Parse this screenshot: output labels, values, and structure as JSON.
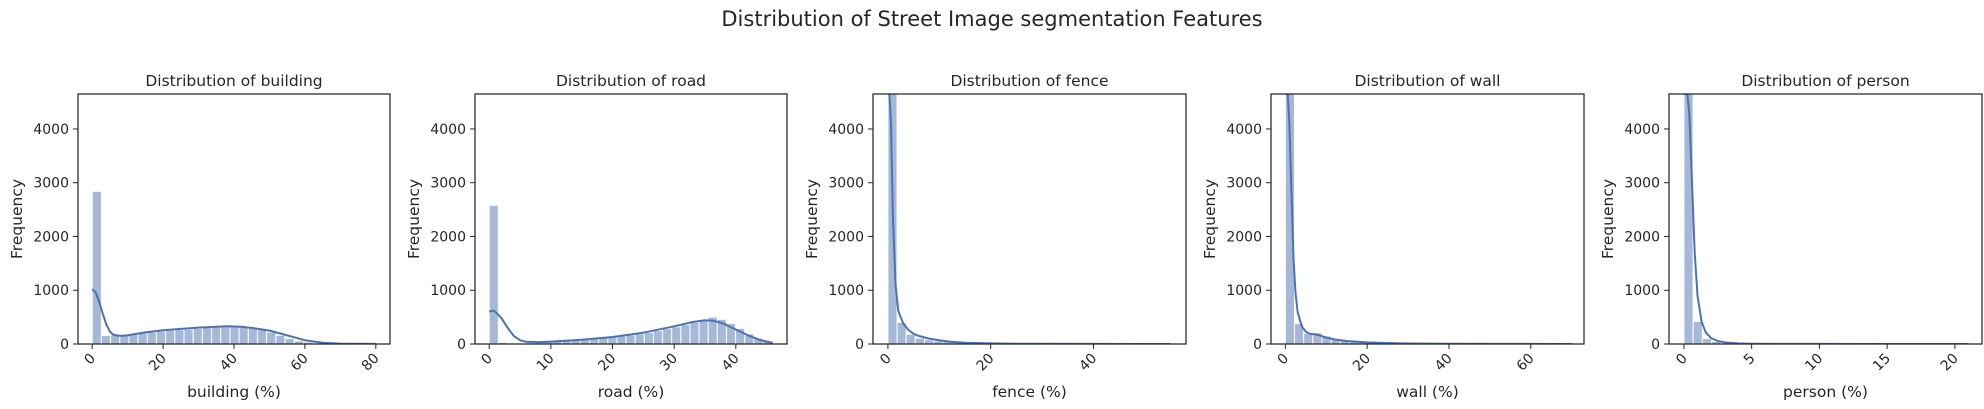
{
  "figure": {
    "suptitle": "Distribution of Street Image segmentation Features"
  },
  "colors": {
    "bar_fill": "#4c72b0",
    "kde_line": "#4c72b0",
    "axes": "#262626",
    "text": "#262626",
    "background": "#ffffff"
  },
  "chart_data": [
    {
      "type": "histogram",
      "title": "Distribution of building",
      "xlabel": "building (%)",
      "ylabel": "Frequency",
      "xlim": [
        -4,
        84
      ],
      "ylim": [
        0,
        4650
      ],
      "xticks": [
        0,
        20,
        40,
        60,
        80
      ],
      "yticks": [
        0,
        1000,
        2000,
        3000,
        4000
      ],
      "xticklabels": [
        "0",
        "20",
        "40",
        "60",
        "80"
      ],
      "yticklabels": [
        "0",
        "1000",
        "2000",
        "3000",
        "4000"
      ],
      "bin_edges": [
        0,
        2.59,
        5.18,
        7.77,
        10.36,
        12.95,
        15.54,
        18.13,
        20.72,
        23.31,
        25.9,
        28.49,
        31.08,
        33.67,
        36.26,
        38.85,
        41.44,
        44.03,
        46.62,
        49.21,
        51.8,
        54.39,
        56.98,
        59.57,
        62.16,
        64.75,
        67.34,
        69.93,
        72.52,
        75.11,
        77.7,
        80.29
      ],
      "counts": [
        2840,
        160,
        165,
        170,
        185,
        205,
        220,
        240,
        255,
        265,
        275,
        290,
        305,
        320,
        320,
        330,
        320,
        300,
        270,
        220,
        160,
        100,
        60,
        35,
        20,
        12,
        8,
        5,
        3,
        2,
        1
      ],
      "kde": {
        "x": [
          0,
          1,
          2,
          3,
          4,
          5,
          6,
          8,
          10,
          12,
          15,
          20,
          25,
          30,
          35,
          38,
          42,
          45,
          50,
          55,
          60,
          65,
          70,
          80
        ],
        "y": [
          1020,
          960,
          780,
          560,
          360,
          230,
          170,
          150,
          160,
          185,
          215,
          255,
          280,
          305,
          320,
          330,
          320,
          300,
          250,
          160,
          70,
          25,
          8,
          1
        ]
      }
    },
    {
      "type": "histogram",
      "title": "Distribution of road",
      "xlabel": "road (%)",
      "ylabel": "Frequency",
      "xlim": [
        -2.3,
        48.3
      ],
      "ylim": [
        0,
        4650
      ],
      "xticks": [
        0,
        10,
        20,
        30,
        40
      ],
      "yticks": [
        0,
        1000,
        2000,
        3000,
        4000
      ],
      "xticklabels": [
        "0",
        "10",
        "20",
        "30",
        "40"
      ],
      "yticklabels": [
        "0",
        "1000",
        "2000",
        "3000",
        "4000"
      ],
      "bin_edges": [
        0,
        1.48,
        2.96,
        4.44,
        5.92,
        7.4,
        8.88,
        10.36,
        11.84,
        13.32,
        14.8,
        16.28,
        17.76,
        19.24,
        20.72,
        22.2,
        23.68,
        25.16,
        26.64,
        28.12,
        29.6,
        31.08,
        32.56,
        34.04,
        35.52,
        37.0,
        38.48,
        39.96,
        41.44,
        42.92,
        44.4,
        45.88
      ],
      "counts": [
        2580,
        30,
        20,
        20,
        25,
        30,
        40,
        50,
        60,
        70,
        85,
        100,
        115,
        130,
        150,
        165,
        190,
        215,
        250,
        285,
        320,
        360,
        400,
        440,
        500,
        460,
        380,
        290,
        190,
        110,
        55
      ],
      "kde": {
        "x": [
          0,
          0.5,
          1,
          2,
          3,
          4,
          5,
          6,
          8,
          10,
          15,
          20,
          25,
          30,
          33,
          35,
          36.5,
          38,
          40,
          42,
          44,
          46
        ],
        "y": [
          600,
          620,
          600,
          480,
          300,
          150,
          70,
          40,
          35,
          45,
          80,
          130,
          210,
          330,
          410,
          440,
          430,
          380,
          270,
          160,
          70,
          20
        ]
      }
    },
    {
      "type": "histogram",
      "title": "Distribution of fence",
      "xlabel": "fence (%)",
      "ylabel": "Frequency",
      "xlim": [
        -2.9,
        58.0
      ],
      "ylim": [
        0,
        4650
      ],
      "xticks": [
        0,
        20,
        40
      ],
      "yticks": [
        0,
        1000,
        2000,
        3000,
        4000
      ],
      "xticklabels": [
        "0",
        "20",
        "40"
      ],
      "yticklabels": [
        "0",
        "1000",
        "2000",
        "3000",
        "4000"
      ],
      "bin_edges": [
        0,
        1.78,
        3.56,
        5.34,
        7.12,
        8.9,
        10.68,
        12.46,
        14.24,
        16.02,
        17.8,
        19.58,
        21.36,
        23.14,
        24.92,
        26.7,
        28.48,
        30.26,
        32.04,
        33.82,
        35.6,
        37.38,
        39.16,
        40.94,
        42.72,
        44.5,
        46.28,
        48.06,
        49.84,
        51.62,
        53.4,
        55.18
      ],
      "counts": [
        4650,
        400,
        180,
        110,
        80,
        60,
        45,
        35,
        25,
        20,
        15,
        12,
        10,
        8,
        6,
        5,
        4,
        3,
        3,
        2,
        2,
        1,
        1,
        1,
        1,
        1,
        0,
        0,
        0,
        0,
        1
      ],
      "kde": {
        "x": [
          0,
          0.3,
          0.6,
          1,
          1.5,
          2,
          3,
          4,
          5,
          6,
          8,
          10,
          12,
          15,
          20,
          25,
          30,
          40,
          55
        ],
        "y": [
          4650,
          4650,
          4100,
          2300,
          1100,
          620,
          380,
          260,
          190,
          150,
          100,
          70,
          45,
          25,
          12,
          5,
          3,
          1,
          0
        ]
      }
    },
    {
      "type": "histogram",
      "title": "Distribution of wall",
      "xlabel": "wall (%)",
      "ylabel": "Frequency",
      "xlim": [
        -3.5,
        73.0
      ],
      "ylim": [
        0,
        4650
      ],
      "xticks": [
        0,
        20,
        40,
        60
      ],
      "yticks": [
        0,
        1000,
        2000,
        3000,
        4000
      ],
      "xticklabels": [
        "0",
        "20",
        "40",
        "60"
      ],
      "yticklabels": [
        "0",
        "1000",
        "2000",
        "3000",
        "4000"
      ],
      "bin_edges": [
        0,
        2.24,
        4.48,
        6.72,
        8.96,
        11.2,
        13.44,
        15.68,
        17.92,
        20.16,
        22.4,
        24.64,
        26.88,
        29.12,
        31.36,
        33.6,
        35.84,
        38.08,
        40.32,
        42.56,
        44.8,
        47.04,
        49.28,
        51.52,
        53.76,
        56.0,
        58.24,
        60.48,
        62.72,
        64.96,
        67.2,
        69.44
      ],
      "counts": [
        4650,
        380,
        200,
        210,
        150,
        100,
        70,
        50,
        40,
        30,
        25,
        20,
        15,
        12,
        10,
        8,
        6,
        5,
        4,
        3,
        3,
        2,
        2,
        1,
        1,
        1,
        1,
        0,
        0,
        0,
        1
      ],
      "kde": {
        "x": [
          0,
          0.3,
          0.6,
          1,
          1.5,
          2,
          2.5,
          3,
          4,
          5,
          6,
          7,
          8,
          10,
          12,
          15,
          20,
          25,
          30,
          40,
          55,
          70
        ],
        "y": [
          4650,
          4650,
          4650,
          4100,
          2800,
          1600,
          950,
          600,
          330,
          230,
          190,
          180,
          170,
          120,
          85,
          55,
          30,
          18,
          10,
          4,
          1,
          0
        ]
      }
    },
    {
      "type": "histogram",
      "title": "Distribution of person",
      "xlabel": "person (%)",
      "ylabel": "Frequency",
      "xlim": [
        -1.1,
        22.0
      ],
      "ylim": [
        0,
        4650
      ],
      "xticks": [
        0,
        5,
        10,
        15,
        20
      ],
      "yticks": [
        0,
        1000,
        2000,
        3000,
        4000
      ],
      "xticklabels": [
        "0",
        "5",
        "10",
        "15",
        "20"
      ],
      "yticklabels": [
        "0",
        "1000",
        "2000",
        "3000",
        "4000"
      ],
      "bin_edges": [
        0,
        0.68,
        1.36,
        2.04,
        2.72,
        3.4,
        4.08,
        4.76,
        5.44,
        6.12,
        6.8,
        7.48,
        8.16,
        8.84,
        9.52,
        10.2,
        10.88,
        11.56,
        12.24,
        12.92,
        13.6,
        14.28,
        14.96,
        15.64,
        16.32,
        17.0,
        17.68,
        18.36,
        19.04,
        19.72,
        20.4,
        21.08
      ],
      "counts": [
        4650,
        420,
        100,
        45,
        20,
        12,
        8,
        5,
        4,
        3,
        2,
        2,
        1,
        1,
        1,
        1,
        1,
        0,
        0,
        0,
        0,
        0,
        0,
        0,
        0,
        0,
        0,
        0,
        0,
        0,
        1
      ],
      "kde": {
        "x": [
          0,
          0.1,
          0.25,
          0.4,
          0.6,
          0.8,
          1.0,
          1.3,
          1.6,
          2.0,
          2.5,
          3,
          4,
          5,
          7,
          10,
          15,
          21
        ],
        "y": [
          4650,
          4650,
          4650,
          4300,
          3000,
          1700,
          900,
          420,
          220,
          110,
          55,
          30,
          12,
          6,
          2,
          1,
          0,
          0
        ]
      }
    }
  ]
}
